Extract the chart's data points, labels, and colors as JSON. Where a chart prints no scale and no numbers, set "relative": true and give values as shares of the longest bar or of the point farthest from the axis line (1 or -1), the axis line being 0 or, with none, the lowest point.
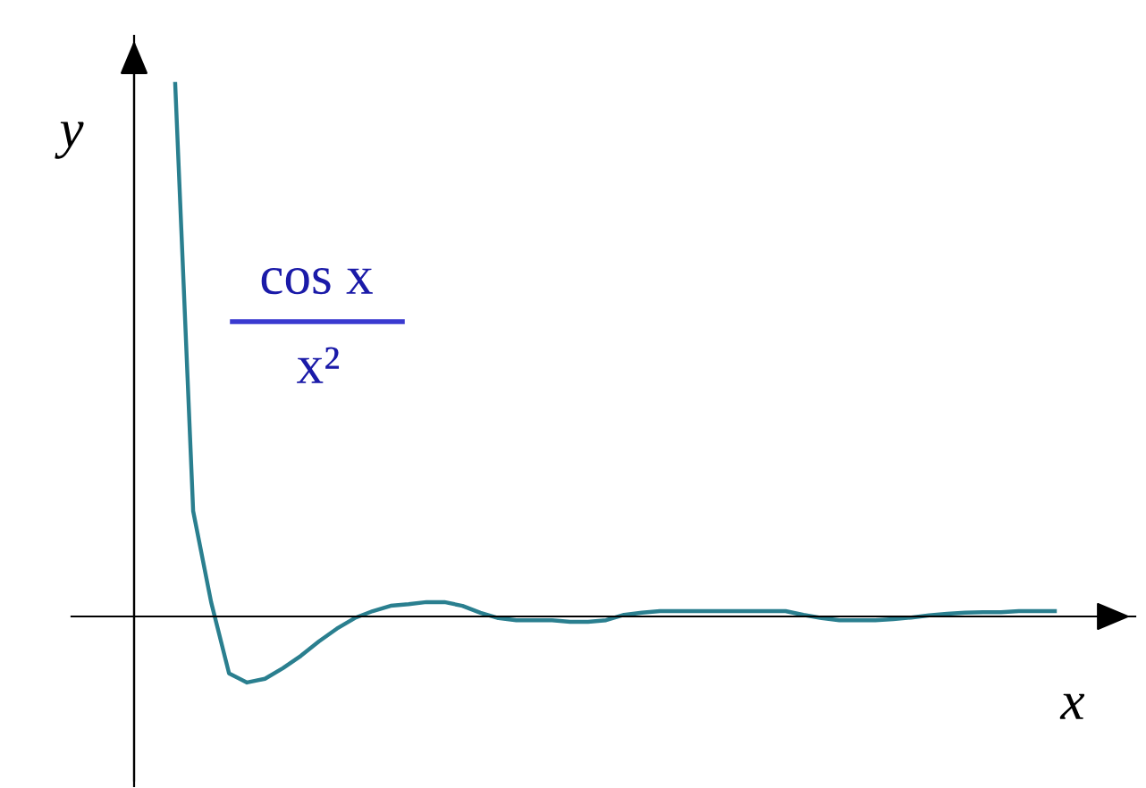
{
  "chart_data": {
    "type": "line",
    "relative": true,
    "xlabel": "x",
    "ylabel": "y",
    "annotations": [
      "cos x",
      "x²"
    ],
    "categories": [
      null,
      null,
      null,
      null,
      null,
      null,
      null,
      null,
      null,
      null,
      null,
      null,
      null,
      null,
      null,
      null,
      null,
      null,
      null,
      null,
      null,
      null,
      null,
      null,
      null,
      null,
      null,
      null,
      null,
      null,
      null,
      null,
      null,
      null,
      null,
      null,
      null,
      null,
      null,
      null,
      null,
      null,
      null,
      null,
      null,
      null,
      null,
      null,
      null,
      null
    ],
    "series": [
      {
        "color": "#2a7f8f",
        "values": [
          1,
          0.198,
          0.027,
          -0.107,
          -0.124,
          -0.117,
          -0.097,
          -0.074,
          -0.047,
          -0.023,
          -0.003,
          0.01,
          0.02,
          0.023,
          0.027,
          0.027,
          0.02,
          0.007,
          -0.003,
          -0.007,
          -0.007,
          -0.007,
          -0.01,
          -0.01,
          -0.007,
          0.003,
          0.007,
          0.01,
          0.01,
          0.01,
          0.01,
          0.01,
          0.01,
          0.01,
          0.01,
          0.003,
          -0.003,
          -0.007,
          -0.007,
          -0.007,
          -0.005,
          -0.002,
          0.002,
          0.005,
          0.007,
          0.008,
          0.008,
          0.01,
          0.01,
          0.01
        ]
      }
    ]
  }
}
